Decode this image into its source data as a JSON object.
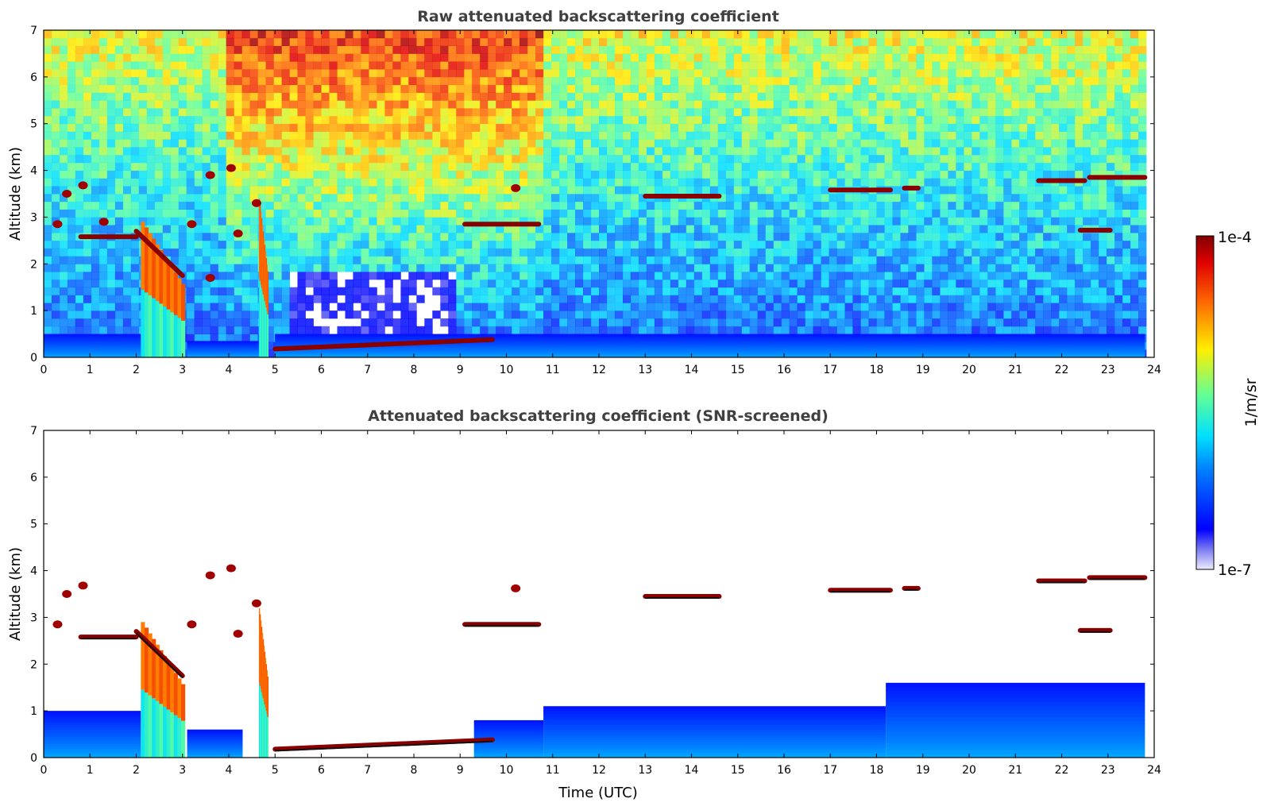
{
  "chart_data": [
    {
      "type": "heatmap",
      "title": "Raw attenuated backscattering coefficient",
      "xlabel": "",
      "ylabel": "Altitude (km)",
      "xlim": [
        0,
        24
      ],
      "ylim": [
        0,
        7
      ],
      "xticks": [
        0,
        1,
        2,
        3,
        4,
        5,
        6,
        7,
        8,
        9,
        10,
        11,
        12,
        13,
        14,
        15,
        16,
        17,
        18,
        19,
        20,
        21,
        22,
        23,
        24
      ],
      "yticks": [
        0,
        1,
        2,
        3,
        4,
        5,
        6,
        7
      ],
      "noise_field": true,
      "features": [
        {
          "kind": "boundary-layer",
          "t0": 0,
          "t1": 2.1,
          "base": 0,
          "top": 0.5
        },
        {
          "kind": "boundary-layer",
          "t0": 3.1,
          "t1": 4.7,
          "base": 0,
          "top": 0.35
        },
        {
          "kind": "boundary-layer",
          "t0": 5.0,
          "t1": 23.8,
          "base": 0,
          "top": 0.5
        },
        {
          "kind": "precipitation",
          "t0": 2.1,
          "t1": 3.05,
          "top": 2.9
        },
        {
          "kind": "precipitation",
          "t0": 4.65,
          "t1": 4.85,
          "top": 3.4
        },
        {
          "kind": "layer",
          "t0": 0.8,
          "t1": 2.0,
          "alt": 2.58
        },
        {
          "kind": "layer",
          "t0": 2.0,
          "t1": 3.0,
          "alt_start": 2.7,
          "alt_end": 1.75,
          "slope": true
        },
        {
          "kind": "layer",
          "t0": 5.0,
          "t1": 9.7,
          "alt_start": 0.18,
          "alt_end": 0.38,
          "slope": true
        },
        {
          "kind": "layer",
          "t0": 9.1,
          "t1": 10.7,
          "alt": 2.85
        },
        {
          "kind": "layer",
          "t0": 13.0,
          "t1": 14.6,
          "alt": 3.45
        },
        {
          "kind": "layer",
          "t0": 17.0,
          "t1": 18.3,
          "alt": 3.58
        },
        {
          "kind": "layer",
          "t0": 18.6,
          "t1": 18.9,
          "alt": 3.62
        },
        {
          "kind": "layer",
          "t0": 21.5,
          "t1": 22.5,
          "alt": 3.78
        },
        {
          "kind": "layer",
          "t0": 22.6,
          "t1": 23.8,
          "alt": 3.85
        },
        {
          "kind": "layer",
          "t0": 22.4,
          "t1": 23.05,
          "alt": 2.72
        },
        {
          "kind": "patch",
          "t": 0.5,
          "alt": 3.5
        },
        {
          "kind": "patch",
          "t": 0.85,
          "alt": 3.68
        },
        {
          "kind": "patch",
          "t": 0.3,
          "alt": 2.85
        },
        {
          "kind": "patch",
          "t": 1.3,
          "alt": 2.9
        },
        {
          "kind": "patch",
          "t": 3.2,
          "alt": 2.85
        },
        {
          "kind": "patch",
          "t": 3.6,
          "alt": 3.9
        },
        {
          "kind": "patch",
          "t": 4.05,
          "alt": 4.05
        },
        {
          "kind": "patch",
          "t": 3.6,
          "alt": 1.7
        },
        {
          "kind": "patch",
          "t": 4.2,
          "alt": 2.65
        },
        {
          "kind": "patch",
          "t": 4.6,
          "alt": 3.3
        },
        {
          "kind": "patch",
          "t": 10.2,
          "alt": 3.62
        }
      ]
    },
    {
      "type": "heatmap",
      "title": "Attenuated backscattering coefficient (SNR-screened)",
      "xlabel": "Time (UTC)",
      "ylabel": "Altitude (km)",
      "xlim": [
        0,
        24
      ],
      "ylim": [
        0,
        7
      ],
      "xticks": [
        0,
        1,
        2,
        3,
        4,
        5,
        6,
        7,
        8,
        9,
        10,
        11,
        12,
        13,
        14,
        15,
        16,
        17,
        18,
        19,
        20,
        21,
        22,
        23,
        24
      ],
      "yticks": [
        0,
        1,
        2,
        3,
        4,
        5,
        6,
        7
      ],
      "noise_field": false,
      "features": [
        {
          "kind": "boundary-layer",
          "t0": 0,
          "t1": 2.1,
          "base": 0,
          "top": 1.0
        },
        {
          "kind": "boundary-layer",
          "t0": 3.1,
          "t1": 4.3,
          "base": 0,
          "top": 0.6
        },
        {
          "kind": "boundary-layer",
          "t0": 9.3,
          "t1": 10.8,
          "base": 0,
          "top": 0.8
        },
        {
          "kind": "boundary-layer",
          "t0": 10.8,
          "t1": 18.2,
          "base": 0,
          "top": 1.1
        },
        {
          "kind": "boundary-layer",
          "t0": 18.2,
          "t1": 23.8,
          "base": 0,
          "top": 1.6
        },
        {
          "kind": "precipitation",
          "t0": 2.1,
          "t1": 3.05,
          "top": 2.9
        },
        {
          "kind": "precipitation",
          "t0": 4.65,
          "t1": 4.85,
          "top": 3.2
        },
        {
          "kind": "layer",
          "t0": 0.8,
          "t1": 2.0,
          "alt": 2.58
        },
        {
          "kind": "layer",
          "t0": 2.0,
          "t1": 3.0,
          "alt_start": 2.7,
          "alt_end": 1.75,
          "slope": true
        },
        {
          "kind": "layer",
          "t0": 5.0,
          "t1": 9.7,
          "alt_start": 0.18,
          "alt_end": 0.38,
          "slope": true
        },
        {
          "kind": "layer",
          "t0": 9.1,
          "t1": 10.7,
          "alt": 2.85
        },
        {
          "kind": "layer",
          "t0": 13.0,
          "t1": 14.6,
          "alt": 3.45
        },
        {
          "kind": "layer",
          "t0": 17.0,
          "t1": 18.3,
          "alt": 3.58
        },
        {
          "kind": "layer",
          "t0": 18.6,
          "t1": 18.9,
          "alt": 3.62
        },
        {
          "kind": "layer",
          "t0": 21.5,
          "t1": 22.5,
          "alt": 3.78
        },
        {
          "kind": "layer",
          "t0": 22.6,
          "t1": 23.8,
          "alt": 3.85
        },
        {
          "kind": "layer",
          "t0": 22.4,
          "t1": 23.05,
          "alt": 2.72
        },
        {
          "kind": "patch",
          "t": 0.5,
          "alt": 3.5
        },
        {
          "kind": "patch",
          "t": 0.85,
          "alt": 3.68
        },
        {
          "kind": "patch",
          "t": 0.3,
          "alt": 2.85
        },
        {
          "kind": "patch",
          "t": 3.2,
          "alt": 2.85
        },
        {
          "kind": "patch",
          "t": 3.6,
          "alt": 3.9
        },
        {
          "kind": "patch",
          "t": 4.05,
          "alt": 4.05
        },
        {
          "kind": "patch",
          "t": 4.2,
          "alt": 2.65
        },
        {
          "kind": "patch",
          "t": 4.6,
          "alt": 3.3
        },
        {
          "kind": "patch",
          "t": 10.2,
          "alt": 3.62
        }
      ]
    }
  ],
  "colorbar": {
    "label": "1/m/sr",
    "max_label": "1e-4",
    "min_label": "1e-7",
    "colormap": "jet",
    "scale": "log",
    "range": [
      1e-07,
      0.0001
    ]
  }
}
